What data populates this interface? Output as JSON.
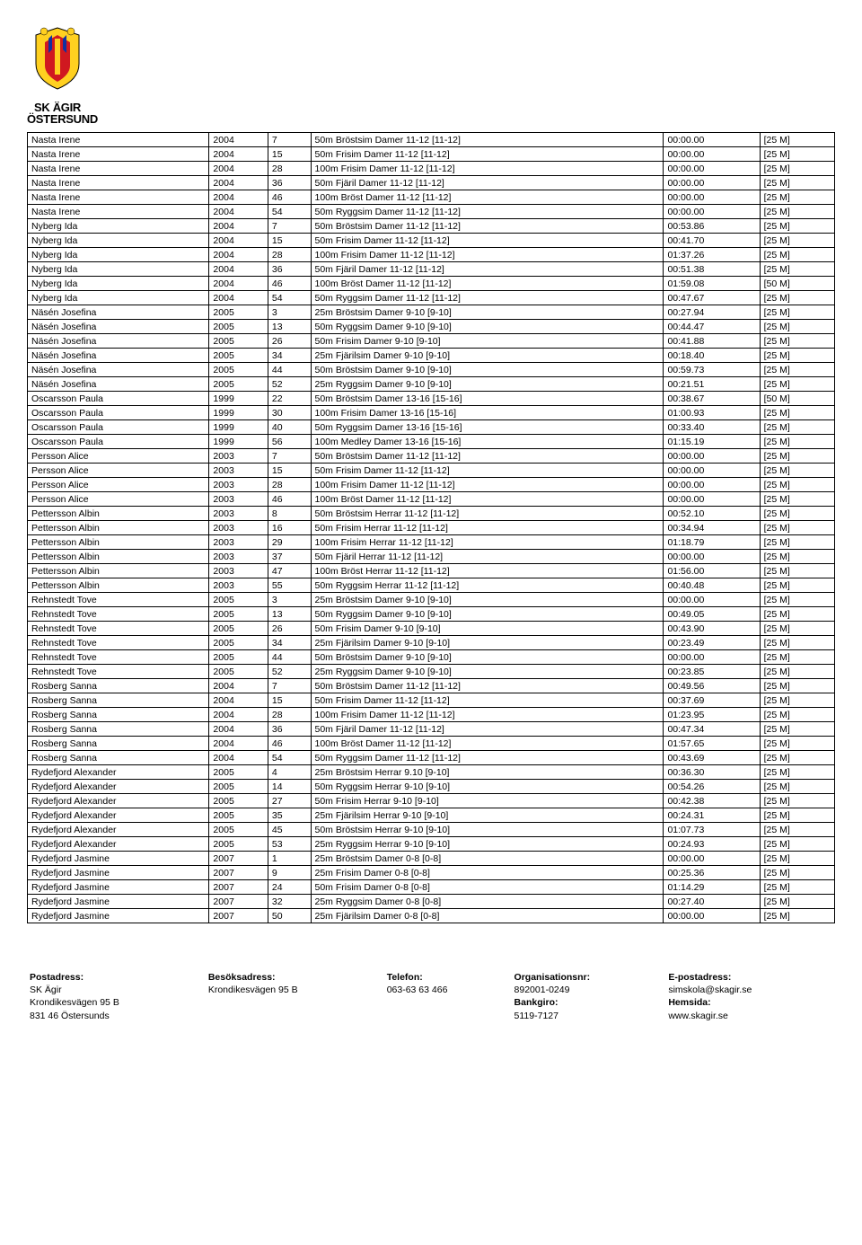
{
  "logo": {
    "line1": "SK ÄGIR",
    "line2": "ÖSTERSUND",
    "colors": {
      "yellow": "#ffd020",
      "red": "#d01820",
      "blue": "#1030a0"
    }
  },
  "table": {
    "columns": [
      "name",
      "year",
      "num",
      "event",
      "time",
      "pool"
    ],
    "rows": [
      [
        "Nasta Irene",
        "2004",
        "7",
        "50m Bröstsim Damer 11-12 [11-12]",
        "00:00.00",
        "[25 M]"
      ],
      [
        "Nasta Irene",
        "2004",
        "15",
        "50m Frisim Damer 11-12 [11-12]",
        "00:00.00",
        "[25 M]"
      ],
      [
        "Nasta Irene",
        "2004",
        "28",
        "100m Frisim Damer 11-12 [11-12]",
        "00:00.00",
        "[25 M]"
      ],
      [
        "Nasta Irene",
        "2004",
        "36",
        "50m Fjäril Damer 11-12 [11-12]",
        "00:00.00",
        "[25 M]"
      ],
      [
        "Nasta Irene",
        "2004",
        "46",
        "100m Bröst Damer 11-12 [11-12]",
        "00:00.00",
        "[25 M]"
      ],
      [
        "Nasta Irene",
        "2004",
        "54",
        "50m Ryggsim Damer 11-12 [11-12]",
        "00:00.00",
        "[25 M]"
      ],
      [
        "Nyberg Ida",
        "2004",
        "7",
        "50m Bröstsim Damer 11-12 [11-12]",
        "00:53.86",
        "[25 M]"
      ],
      [
        "Nyberg Ida",
        "2004",
        "15",
        "50m Frisim Damer 11-12 [11-12]",
        "00:41.70",
        "[25 M]"
      ],
      [
        "Nyberg Ida",
        "2004",
        "28",
        "100m Frisim Damer 11-12 [11-12]",
        "01:37.26",
        "[25 M]"
      ],
      [
        "Nyberg Ida",
        "2004",
        "36",
        "50m Fjäril Damer 11-12 [11-12]",
        "00:51.38",
        "[25 M]"
      ],
      [
        "Nyberg Ida",
        "2004",
        "46",
        "100m Bröst Damer 11-12 [11-12]",
        "01:59.08",
        "[50 M]"
      ],
      [
        "Nyberg Ida",
        "2004",
        "54",
        "50m Ryggsim Damer 11-12 [11-12]",
        "00:47.67",
        "[25 M]"
      ],
      [
        "Näsén Josefina",
        "2005",
        "3",
        "25m Bröstsim Damer 9-10 [9-10]",
        "00:27.94",
        "[25 M]"
      ],
      [
        "Näsén Josefina",
        "2005",
        "13",
        "50m Ryggsim Damer 9-10 [9-10]",
        "00:44.47",
        "[25 M]"
      ],
      [
        "Näsén Josefina",
        "2005",
        "26",
        "50m Frisim Damer 9-10 [9-10]",
        "00:41.88",
        "[25 M]"
      ],
      [
        "Näsén Josefina",
        "2005",
        "34",
        "25m Fjärilsim Damer 9-10 [9-10]",
        "00:18.40",
        "[25 M]"
      ],
      [
        "Näsén Josefina",
        "2005",
        "44",
        "50m Bröstsim Damer 9-10 [9-10]",
        "00:59.73",
        "[25 M]"
      ],
      [
        "Näsén Josefina",
        "2005",
        "52",
        "25m Ryggsim Damer 9-10 [9-10]",
        "00:21.51",
        "[25 M]"
      ],
      [
        "Oscarsson Paula",
        "1999",
        "22",
        "50m Bröstsim Damer 13-16 [15-16]",
        "00:38.67",
        "[50 M]"
      ],
      [
        "Oscarsson Paula",
        "1999",
        "30",
        "100m Frisim Damer 13-16 [15-16]",
        "01:00.93",
        "[25 M]"
      ],
      [
        "Oscarsson Paula",
        "1999",
        "40",
        "50m Ryggsim Damer 13-16 [15-16]",
        "00:33.40",
        "[25 M]"
      ],
      [
        "Oscarsson Paula",
        "1999",
        "56",
        "100m Medley Damer 13-16 [15-16]",
        "01:15.19",
        "[25 M]"
      ],
      [
        "Persson Alice",
        "2003",
        "7",
        "50m Bröstsim Damer 11-12 [11-12]",
        "00:00.00",
        "[25 M]"
      ],
      [
        "Persson Alice",
        "2003",
        "15",
        "50m Frisim Damer 11-12 [11-12]",
        "00:00.00",
        "[25 M]"
      ],
      [
        "Persson Alice",
        "2003",
        "28",
        "100m Frisim Damer 11-12 [11-12]",
        "00:00.00",
        "[25 M]"
      ],
      [
        "Persson Alice",
        "2003",
        "46",
        "100m Bröst Damer 11-12 [11-12]",
        "00:00.00",
        "[25 M]"
      ],
      [
        "Pettersson Albin",
        "2003",
        "8",
        "50m Bröstsim Herrar 11-12 [11-12]",
        "00:52.10",
        "[25 M]"
      ],
      [
        "Pettersson Albin",
        "2003",
        "16",
        "50m Frisim Herrar 11-12 [11-12]",
        "00:34.94",
        "[25 M]"
      ],
      [
        "Pettersson Albin",
        "2003",
        "29",
        "100m Frisim Herrar 11-12 [11-12]",
        "01:18.79",
        "[25 M]"
      ],
      [
        "Pettersson Albin",
        "2003",
        "37",
        "50m Fjäril Herrar 11-12 [11-12]",
        "00:00.00",
        "[25 M]"
      ],
      [
        "Pettersson Albin",
        "2003",
        "47",
        "100m Bröst Herrar 11-12 [11-12]",
        "01:56.00",
        "[25 M]"
      ],
      [
        "Pettersson Albin",
        "2003",
        "55",
        "50m Ryggsim Herrar 11-12 [11-12]",
        "00:40.48",
        "[25 M]"
      ],
      [
        "Rehnstedt Tove",
        "2005",
        "3",
        "25m Bröstsim Damer 9-10 [9-10]",
        "00:00.00",
        "[25 M]"
      ],
      [
        "Rehnstedt Tove",
        "2005",
        "13",
        "50m Ryggsim Damer 9-10 [9-10]",
        "00:49.05",
        "[25 M]"
      ],
      [
        "Rehnstedt Tove",
        "2005",
        "26",
        "50m Frisim Damer 9-10 [9-10]",
        "00:43.90",
        "[25 M]"
      ],
      [
        "Rehnstedt Tove",
        "2005",
        "34",
        "25m Fjärilsim Damer 9-10 [9-10]",
        "00:23.49",
        "[25 M]"
      ],
      [
        "Rehnstedt Tove",
        "2005",
        "44",
        "50m Bröstsim Damer 9-10 [9-10]",
        "00:00.00",
        "[25 M]"
      ],
      [
        "Rehnstedt Tove",
        "2005",
        "52",
        "25m Ryggsim Damer 9-10 [9-10]",
        "00:23.85",
        "[25 M]"
      ],
      [
        "Rosberg Sanna",
        "2004",
        "7",
        "50m Bröstsim Damer 11-12 [11-12]",
        "00:49.56",
        "[25 M]"
      ],
      [
        "Rosberg Sanna",
        "2004",
        "15",
        "50m Frisim Damer 11-12 [11-12]",
        "00:37.69",
        "[25 M]"
      ],
      [
        "Rosberg Sanna",
        "2004",
        "28",
        "100m Frisim Damer 11-12 [11-12]",
        "01:23.95",
        "[25 M]"
      ],
      [
        "Rosberg Sanna",
        "2004",
        "36",
        "50m Fjäril Damer 11-12 [11-12]",
        "00:47.34",
        "[25 M]"
      ],
      [
        "Rosberg Sanna",
        "2004",
        "46",
        "100m Bröst Damer 11-12 [11-12]",
        "01:57.65",
        "[25 M]"
      ],
      [
        "Rosberg Sanna",
        "2004",
        "54",
        "50m Ryggsim Damer 11-12 [11-12]",
        "00:43.69",
        "[25 M]"
      ],
      [
        "Rydefjord Alexander",
        "2005",
        "4",
        "25m Bröstsim Herrar 9.10 [9-10]",
        "00:36.30",
        "[25 M]"
      ],
      [
        "Rydefjord Alexander",
        "2005",
        "14",
        "50m Ryggsim Herrar 9-10 [9-10]",
        "00:54.26",
        "[25 M]"
      ],
      [
        "Rydefjord Alexander",
        "2005",
        "27",
        "50m Frisim Herrar 9-10 [9-10]",
        "00:42.38",
        "[25 M]"
      ],
      [
        "Rydefjord Alexander",
        "2005",
        "35",
        "25m Fjärilsim Herrar 9-10 [9-10]",
        "00:24.31",
        "[25 M]"
      ],
      [
        "Rydefjord Alexander",
        "2005",
        "45",
        "50m Bröstsim Herrar 9-10 [9-10]",
        "01:07.73",
        "[25 M]"
      ],
      [
        "Rydefjord Alexander",
        "2005",
        "53",
        "25m Ryggsim Herrar 9-10 [9-10]",
        "00:24.93",
        "[25 M]"
      ],
      [
        "Rydefjord Jasmine",
        "2007",
        "1",
        "25m Bröstsim Damer 0-8 [0-8]",
        "00:00.00",
        "[25 M]"
      ],
      [
        "Rydefjord Jasmine",
        "2007",
        "9",
        "25m Frisim Damer 0-8 [0-8]",
        "00:25.36",
        "[25 M]"
      ],
      [
        "Rydefjord Jasmine",
        "2007",
        "24",
        "50m Frisim Damer 0-8 [0-8]",
        "01:14.29",
        "[25 M]"
      ],
      [
        "Rydefjord Jasmine",
        "2007",
        "32",
        "25m Ryggsim Damer 0-8 [0-8]",
        "00:27.40",
        "[25 M]"
      ],
      [
        "Rydefjord Jasmine",
        "2007",
        "50",
        "25m Fjärilsim Damer 0-8 [0-8]",
        "00:00.00",
        "[25 M]"
      ]
    ]
  },
  "footer": {
    "col1": {
      "hdr": "Postadress:",
      "l1": "SK Ägir",
      "l2": "Krondikesvägen 95 B",
      "l3": "831 46  Östersunds"
    },
    "col2": {
      "hdr": "Besöksadress:",
      "l1": "Krondikesvägen 95 B"
    },
    "col3": {
      "hdr": "Telefon:",
      "l1": "063-63 63 466"
    },
    "col4": {
      "hdr": "Organisationsnr:",
      "l1": "892001-0249",
      "hdr2": "Bankgiro:",
      "l2": "5119-7127"
    },
    "col5": {
      "hdr": "E-postadress:",
      "l1": "simskola@skagir.se",
      "hdr2": "Hemsida:",
      "l2": "www.skagir.se"
    }
  }
}
